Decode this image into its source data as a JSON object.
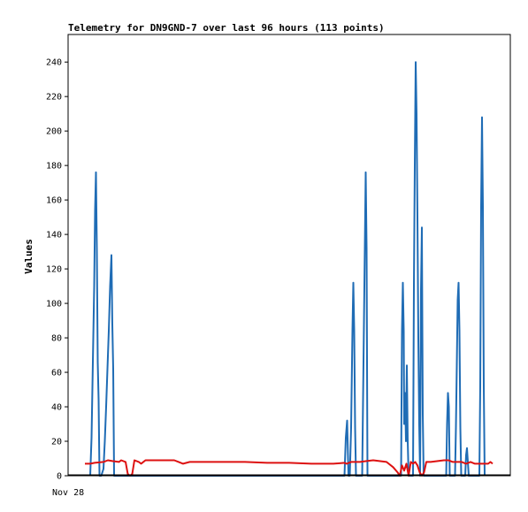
{
  "chart_data": {
    "type": "line",
    "title": "Telemetry for DN9GND-7 over last 96 hours (113 points)",
    "ylabel": "Values",
    "xlabel": "",
    "x_tick_labels": [
      "Nov 28"
    ],
    "ylim": [
      0,
      256
    ],
    "xlim": [
      0,
      100
    ],
    "yticks": [
      0,
      20,
      40,
      60,
      80,
      100,
      120,
      140,
      160,
      180,
      200,
      220,
      240
    ],
    "grid": false,
    "legend": "none",
    "series": [
      {
        "color": "#1f6cb5",
        "points": [
          [
            5.0,
            0
          ],
          [
            5.3,
            22
          ],
          [
            5.6,
            66
          ],
          [
            5.9,
            110
          ],
          [
            6.1,
            154
          ],
          [
            6.3,
            176
          ],
          [
            6.5,
            132
          ],
          [
            6.7,
            66
          ],
          [
            6.9,
            44
          ],
          [
            7.1,
            0
          ],
          [
            7.5,
            0
          ],
          [
            8.0,
            4
          ],
          [
            8.3,
            20
          ],
          [
            8.6,
            40
          ],
          [
            8.9,
            62
          ],
          [
            9.2,
            84
          ],
          [
            9.5,
            110
          ],
          [
            9.8,
            128
          ],
          [
            10.0,
            88
          ],
          [
            10.2,
            62
          ],
          [
            10.4,
            0
          ],
          [
            62.5,
            0
          ],
          [
            62.8,
            22
          ],
          [
            63.1,
            32
          ],
          [
            63.4,
            0
          ],
          [
            63.7,
            0
          ],
          [
            64.0,
            28
          ],
          [
            64.3,
            84
          ],
          [
            64.5,
            112
          ],
          [
            64.7,
            84
          ],
          [
            64.9,
            28
          ],
          [
            65.1,
            0
          ],
          [
            66.5,
            0
          ],
          [
            66.8,
            66
          ],
          [
            67.1,
            132
          ],
          [
            67.3,
            176
          ],
          [
            67.5,
            132
          ],
          [
            67.7,
            0
          ],
          [
            75.3,
            0
          ],
          [
            75.5,
            84
          ],
          [
            75.7,
            112
          ],
          [
            75.9,
            84
          ],
          [
            76.0,
            30
          ],
          [
            76.2,
            48
          ],
          [
            76.4,
            20
          ],
          [
            76.6,
            64
          ],
          [
            76.8,
            20
          ],
          [
            77.0,
            0
          ],
          [
            78.0,
            0
          ],
          [
            78.2,
            110
          ],
          [
            78.4,
            180
          ],
          [
            78.6,
            240
          ],
          [
            78.8,
            210
          ],
          [
            79.0,
            150
          ],
          [
            79.2,
            80
          ],
          [
            79.4,
            30
          ],
          [
            79.6,
            0
          ],
          [
            79.8,
            108
          ],
          [
            80.0,
            144
          ],
          [
            80.2,
            36
          ],
          [
            80.4,
            0
          ],
          [
            85.5,
            0
          ],
          [
            85.7,
            30
          ],
          [
            85.9,
            48
          ],
          [
            86.1,
            40
          ],
          [
            86.3,
            0
          ],
          [
            87.5,
            0
          ],
          [
            87.7,
            28
          ],
          [
            87.9,
            64
          ],
          [
            88.1,
            102
          ],
          [
            88.3,
            112
          ],
          [
            88.5,
            84
          ],
          [
            88.7,
            28
          ],
          [
            88.9,
            0
          ],
          [
            89.8,
            0
          ],
          [
            90.0,
            12
          ],
          [
            90.2,
            16
          ],
          [
            90.4,
            8
          ],
          [
            90.6,
            0
          ],
          [
            93.0,
            0
          ],
          [
            93.2,
            52
          ],
          [
            93.4,
            156
          ],
          [
            93.6,
            208
          ],
          [
            93.8,
            156
          ],
          [
            94.0,
            52
          ],
          [
            94.2,
            0
          ]
        ]
      },
      {
        "color": "#dd1111",
        "points": [
          [
            3.8,
            7
          ],
          [
            5.0,
            7
          ],
          [
            6.0,
            7.5
          ],
          [
            8.0,
            8
          ],
          [
            9.0,
            9
          ],
          [
            10.0,
            8.5
          ],
          [
            11.5,
            8
          ],
          [
            12.0,
            9
          ],
          [
            13.0,
            8
          ],
          [
            13.5,
            1
          ],
          [
            14.0,
            0
          ],
          [
            14.5,
            1
          ],
          [
            15.0,
            9
          ],
          [
            16.0,
            8
          ],
          [
            16.5,
            7
          ],
          [
            17.5,
            9
          ],
          [
            20.0,
            9
          ],
          [
            24.0,
            9
          ],
          [
            25.0,
            8
          ],
          [
            26.0,
            7
          ],
          [
            27.5,
            8
          ],
          [
            33.0,
            8
          ],
          [
            40.0,
            8
          ],
          [
            45.0,
            7.5
          ],
          [
            50.0,
            7.5
          ],
          [
            55.0,
            7
          ],
          [
            60.0,
            7
          ],
          [
            62.5,
            7.5
          ],
          [
            63.0,
            7
          ],
          [
            64.0,
            8
          ],
          [
            66.0,
            8
          ],
          [
            67.5,
            8.5
          ],
          [
            69.0,
            9
          ],
          [
            72.0,
            8
          ],
          [
            73.5,
            5
          ],
          [
            74.5,
            2
          ],
          [
            75.0,
            0
          ],
          [
            75.5,
            6
          ],
          [
            76.0,
            3
          ],
          [
            76.5,
            7
          ],
          [
            77.0,
            0
          ],
          [
            77.5,
            8
          ],
          [
            78.0,
            7
          ],
          [
            78.5,
            8
          ],
          [
            79.0,
            6
          ],
          [
            79.5,
            2
          ],
          [
            80.0,
            0
          ],
          [
            80.5,
            2
          ],
          [
            81.0,
            8
          ],
          [
            82.0,
            8
          ],
          [
            85.0,
            9
          ],
          [
            86.0,
            9
          ],
          [
            87.0,
            8
          ],
          [
            89.0,
            8
          ],
          [
            90.0,
            7
          ],
          [
            91.0,
            8
          ],
          [
            92.0,
            7
          ],
          [
            94.0,
            7
          ],
          [
            95.0,
            7
          ],
          [
            95.5,
            8
          ],
          [
            96.0,
            7
          ]
        ]
      }
    ]
  }
}
